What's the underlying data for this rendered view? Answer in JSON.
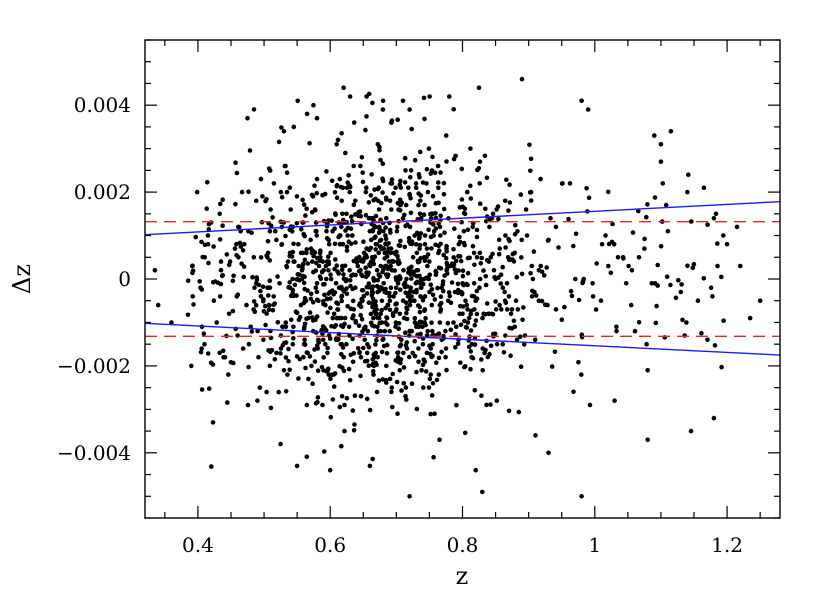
{
  "chart_data": {
    "type": "scatter",
    "xlabel": "z",
    "ylabel": "Δz",
    "xlim": [
      0.32,
      1.28
    ],
    "ylim": [
      -0.0055,
      0.0055
    ],
    "x_ticks": [
      {
        "value": 0.4,
        "label": "0.4"
      },
      {
        "value": 0.6,
        "label": "0.6"
      },
      {
        "value": 0.8,
        "label": "0.8"
      },
      {
        "value": 1.0,
        "label": "1"
      },
      {
        "value": 1.2,
        "label": "1.2"
      }
    ],
    "y_ticks": [
      {
        "value": 0.004,
        "label": "0.004"
      },
      {
        "value": 0.002,
        "label": "0.002"
      },
      {
        "value": 0,
        "label": "0"
      },
      {
        "value": -0.002,
        "label": "−0.002"
      },
      {
        "value": -0.004,
        "label": "−0.004"
      }
    ],
    "x_minor_step": 0.05,
    "y_minor_step": 0.0005,
    "lines": [
      {
        "style": "solid",
        "color": "#1a1aff",
        "x": [
          0.32,
          1.28
        ],
        "y": [
          0.00102,
          0.00178
        ]
      },
      {
        "style": "solid",
        "color": "#1a1aff",
        "x": [
          0.32,
          1.28
        ],
        "y": [
          -0.00102,
          -0.00175
        ]
      },
      {
        "style": "dashed",
        "color": "#e8262a",
        "x": [
          0.32,
          1.28
        ],
        "y": [
          0.00132,
          0.00132
        ]
      },
      {
        "style": "dashed",
        "color": "#e8262a",
        "x": [
          0.32,
          1.28
        ],
        "y": [
          -0.00132,
          -0.00132
        ]
      }
    ],
    "points": {
      "color": "#000000",
      "approx_count": 1600,
      "notable_points": [
        {
          "x": 0.335,
          "y": 0.0002
        },
        {
          "x": 0.34,
          "y": -0.0006
        },
        {
          "x": 0.36,
          "y": -0.001
        },
        {
          "x": 0.39,
          "y": -0.002
        },
        {
          "x": 0.475,
          "y": 0.0037
        },
        {
          "x": 0.53,
          "y": 0.0034
        },
        {
          "x": 0.545,
          "y": 0.0035
        },
        {
          "x": 0.565,
          "y": 0.0038
        },
        {
          "x": 0.58,
          "y": 0.0037
        },
        {
          "x": 0.63,
          "y": 0.0042
        },
        {
          "x": 0.655,
          "y": 0.0042
        },
        {
          "x": 0.68,
          "y": 0.0041
        },
        {
          "x": 0.71,
          "y": 0.0041
        },
        {
          "x": 0.72,
          "y": 0.0039
        },
        {
          "x": 0.78,
          "y": 0.0042
        },
        {
          "x": 0.825,
          "y": 0.0044
        },
        {
          "x": 0.89,
          "y": 0.0046
        },
        {
          "x": 0.98,
          "y": 0.0041
        },
        {
          "x": 0.99,
          "y": 0.0039
        },
        {
          "x": 1.09,
          "y": 0.0033
        },
        {
          "x": 1.1,
          "y": 0.0031
        },
        {
          "x": 1.115,
          "y": 0.0034
        },
        {
          "x": 1.1,
          "y": 0.0027
        },
        {
          "x": 1.14,
          "y": 0.002
        },
        {
          "x": 1.165,
          "y": 0.0021
        },
        {
          "x": 1.18,
          "y": 0.0014
        },
        {
          "x": 1.2,
          "y": 0.0008
        },
        {
          "x": 1.215,
          "y": 0.0012
        },
        {
          "x": 1.22,
          "y": 0.0003
        },
        {
          "x": 1.235,
          "y": -0.0009
        },
        {
          "x": 1.25,
          "y": -0.0005
        },
        {
          "x": 1.18,
          "y": -0.0032
        },
        {
          "x": 1.08,
          "y": -0.0037
        },
        {
          "x": 0.98,
          "y": -0.005
        },
        {
          "x": 0.82,
          "y": -0.0044
        },
        {
          "x": 0.83,
          "y": -0.0049
        },
        {
          "x": 0.72,
          "y": -0.005
        },
        {
          "x": 0.6,
          "y": -0.0044
        },
        {
          "x": 0.55,
          "y": -0.0043
        },
        {
          "x": 0.525,
          "y": -0.0038
        },
        {
          "x": 0.66,
          "y": -0.0043
        },
        {
          "x": 0.93,
          "y": -0.004
        },
        {
          "x": 0.49,
          "y": -0.0028
        },
        {
          "x": 1.03,
          "y": -0.0028
        },
        {
          "x": 0.42,
          "y": 0.0013
        },
        {
          "x": 0.41,
          "y": -0.0015
        }
      ]
    }
  }
}
